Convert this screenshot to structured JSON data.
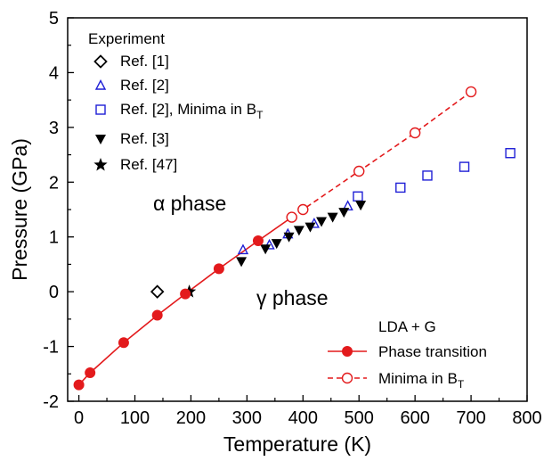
{
  "chart_data": {
    "type": "scatter",
    "xlabel": "Temperature (K)",
    "ylabel": "Pressure (GPa)",
    "xlim": [
      -20,
      800
    ],
    "ylim": [
      -2,
      5
    ],
    "x_ticks": [
      "0",
      "100",
      "200",
      "300",
      "400",
      "500",
      "600",
      "700",
      "800"
    ],
    "y_ticks": [
      "-2",
      "-1",
      "0",
      "1",
      "2",
      "3",
      "4",
      "5"
    ],
    "annotations": {
      "alpha": "α phase",
      "gamma": "γ phase"
    },
    "legend_experiment_title": "Experiment",
    "legend_theory_title": "LDA + G",
    "series": [
      {
        "name": "Ref. [1]",
        "marker": "diamond-open",
        "color": "#000000",
        "points": [
          [
            140,
            0.0
          ]
        ]
      },
      {
        "name": "Ref. [2]",
        "marker": "triangle-open",
        "color": "#1f1fd6",
        "points": [
          [
            293,
            0.76
          ],
          [
            340,
            0.85
          ],
          [
            373,
            1.05
          ],
          [
            420,
            1.24
          ],
          [
            480,
            1.56
          ]
        ]
      },
      {
        "name": "Ref. [2], Minima in B",
        "name_subscript": "T",
        "marker": "square-open",
        "color": "#1f1fd6",
        "points": [
          [
            498,
            1.74
          ],
          [
            574,
            1.9
          ],
          [
            622,
            2.12
          ],
          [
            688,
            2.28
          ],
          [
            770,
            2.53
          ]
        ]
      },
      {
        "name": "Ref. [3]",
        "marker": "triangle-down-filled",
        "color": "#000000",
        "points": [
          [
            290,
            0.55
          ],
          [
            333,
            0.78
          ],
          [
            353,
            0.88
          ],
          [
            375,
            1.0
          ],
          [
            393,
            1.12
          ],
          [
            413,
            1.18
          ],
          [
            433,
            1.28
          ],
          [
            453,
            1.36
          ],
          [
            473,
            1.45
          ],
          [
            503,
            1.58
          ]
        ]
      },
      {
        "name": "Ref. [47]",
        "marker": "star-filled",
        "color": "#000000",
        "points": [
          [
            197,
            0.0
          ]
        ]
      },
      {
        "name": "Phase transition",
        "marker": "circle-filled",
        "line": "solid",
        "color": "#e31a1c",
        "points": [
          [
            0,
            -1.7
          ],
          [
            20,
            -1.48
          ],
          [
            80,
            -0.93
          ],
          [
            140,
            -0.43
          ],
          [
            190,
            -0.04
          ],
          [
            250,
            0.42
          ],
          [
            320,
            0.93
          ],
          [
            380,
            1.36
          ]
        ]
      },
      {
        "name": "Minima in B",
        "name_subscript": "T",
        "marker": "circle-open",
        "line": "dashed",
        "color": "#e31a1c",
        "points": [
          [
            380,
            1.36
          ],
          [
            400,
            1.5
          ],
          [
            500,
            2.2
          ],
          [
            600,
            2.9
          ],
          [
            700,
            3.65
          ]
        ]
      }
    ]
  }
}
